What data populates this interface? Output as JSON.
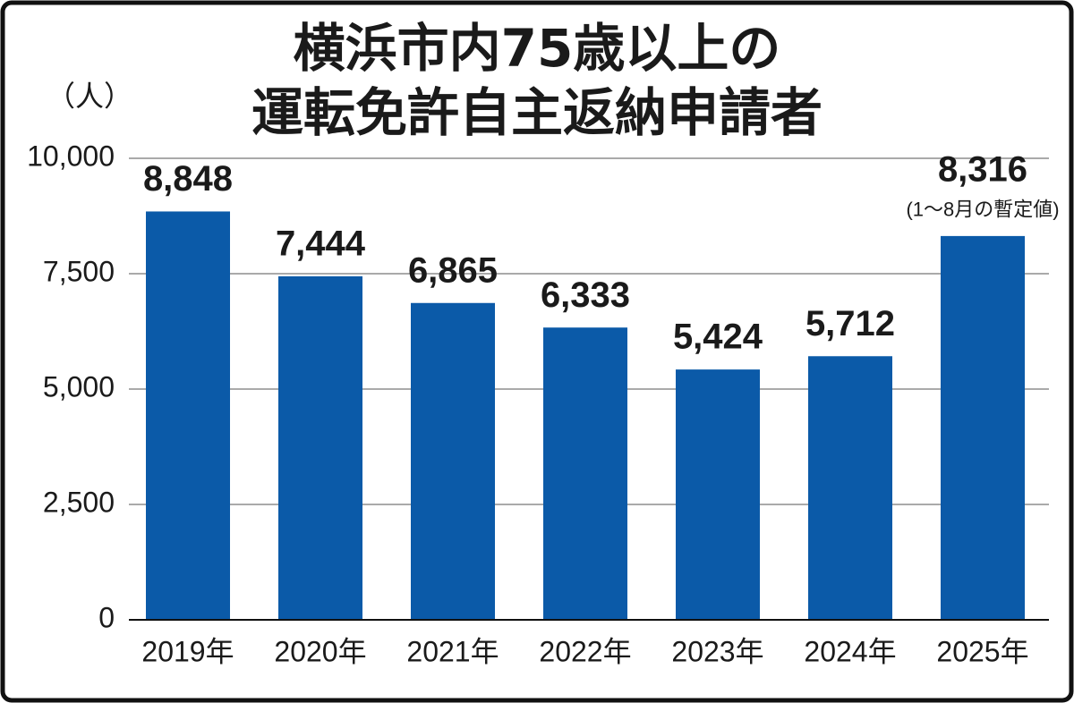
{
  "chart_data": {
    "type": "bar",
    "title": [
      "横浜市内75歳以上の",
      "運転免許自主返納申請者"
    ],
    "y_label": "（人）",
    "categories": [
      "2019年",
      "2020年",
      "2021年",
      "2022年",
      "2023年",
      "2024年",
      "2025年"
    ],
    "values": [
      8848,
      7444,
      6865,
      6333,
      5424,
      5712,
      8316
    ],
    "value_labels": [
      "8,848",
      "7,444",
      "6,865",
      "6,333",
      "5,424",
      "5,712",
      "8,316"
    ],
    "annotation": "(1～8月の暫定値)",
    "color": "#0b5aa8",
    "ylim": [
      0,
      10000
    ],
    "yticks": [
      0,
      {
        "value": 2500,
        "label": "2,500"
      },
      {
        "value": 5000,
        "label": "5,000"
      },
      {
        "value": 7500,
        "label": "7,500"
      },
      {
        "value": 10000,
        "label": "10,000"
      }
    ],
    "grid": true
  }
}
